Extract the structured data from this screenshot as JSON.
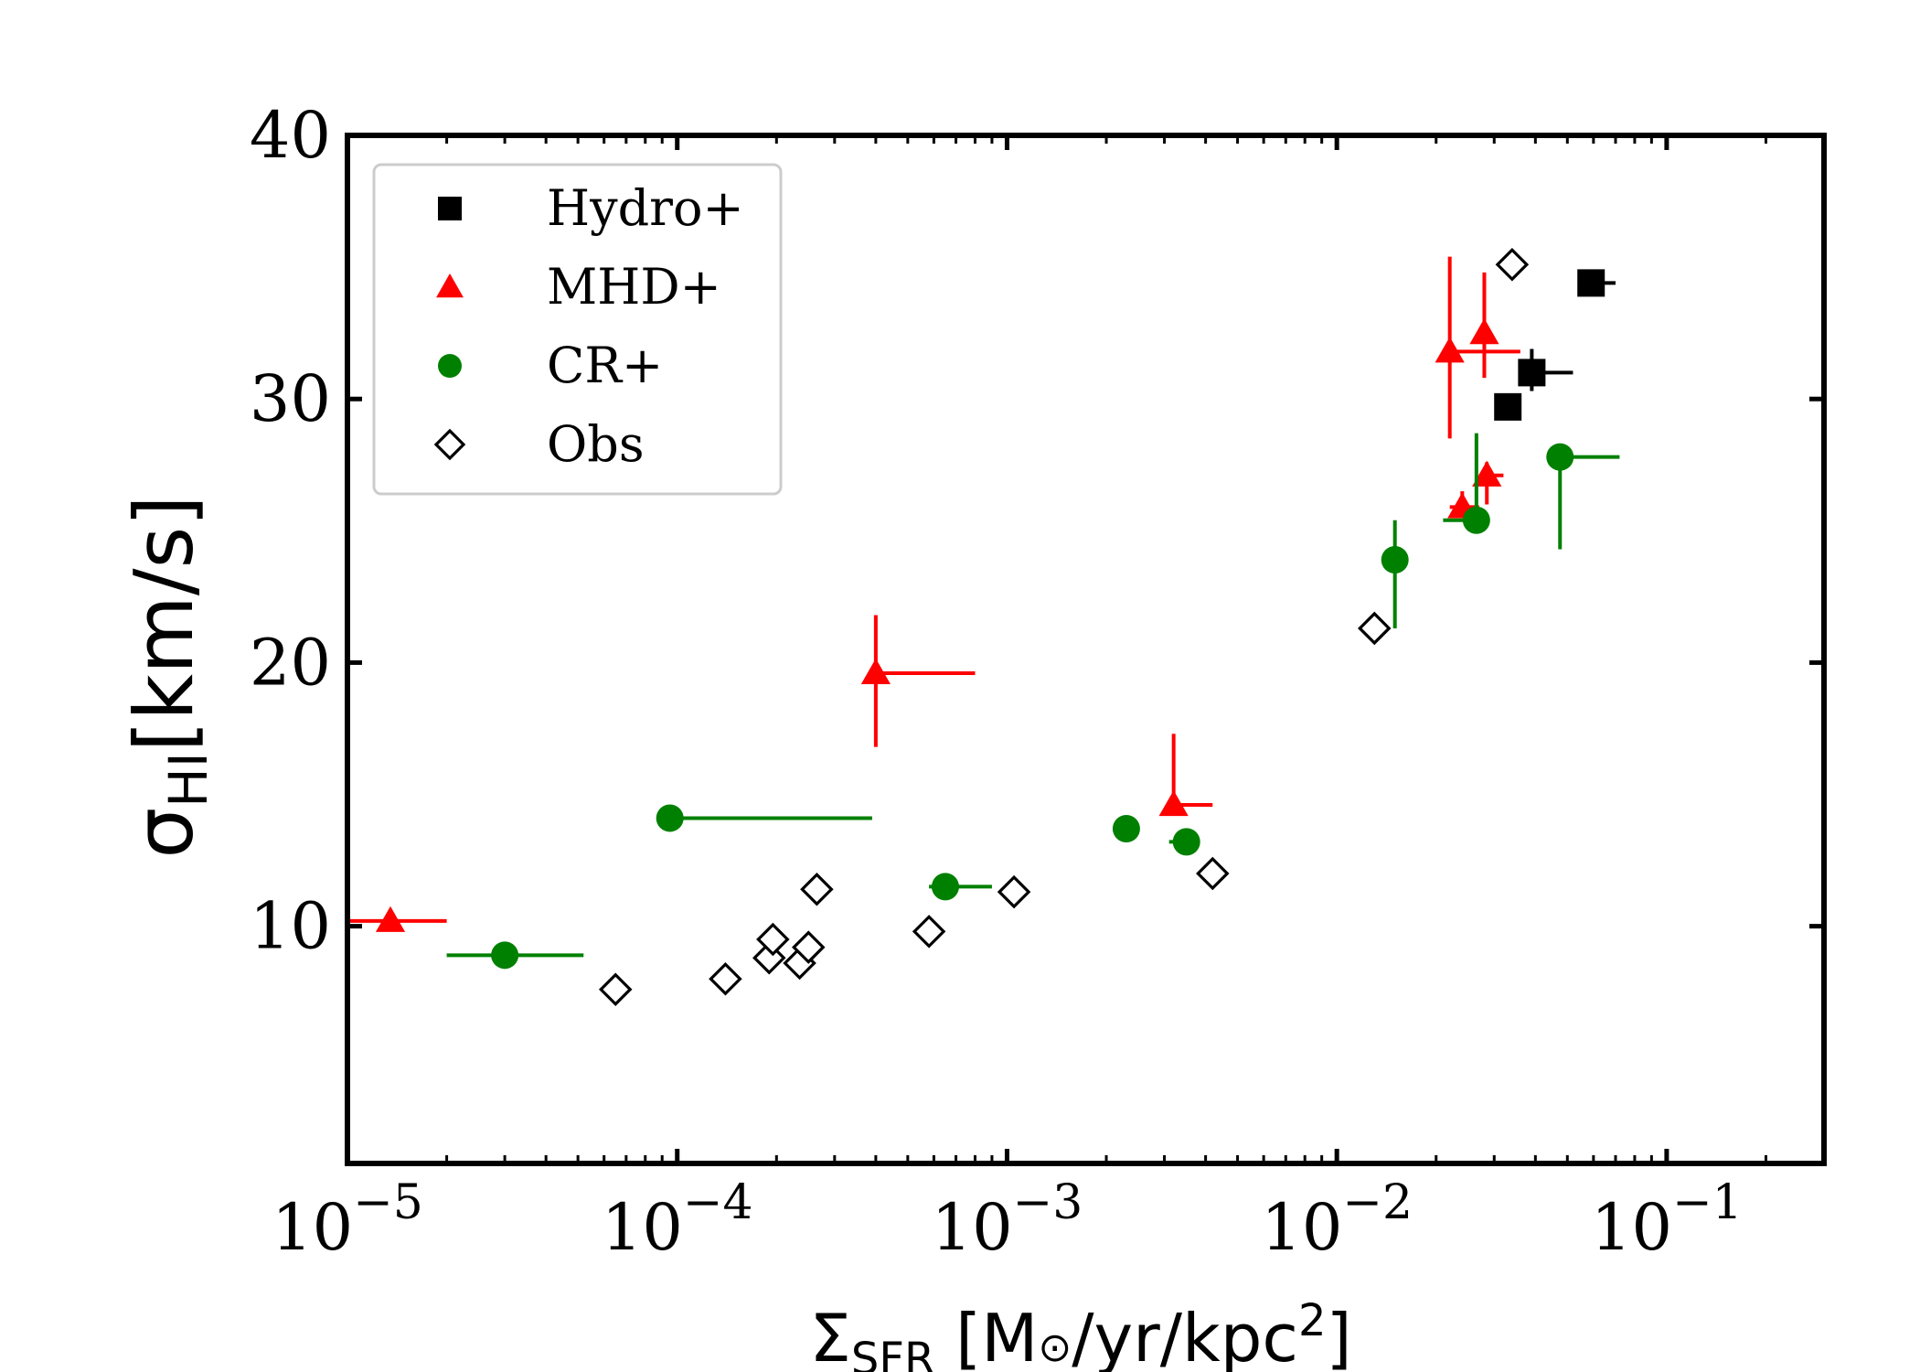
{
  "chart_data": {
    "type": "scatter",
    "title": "",
    "xlabel": {
      "main": "Σ",
      "sub": "SFR",
      "rest": " [M",
      "sun": "⊙",
      "unit": "/yr/kpc",
      "sup": "2",
      "close": "]"
    },
    "ylabel": {
      "main": "σ",
      "sub": "HI",
      "rest": "[km/s]"
    },
    "xscale": "log",
    "xlim": [
      1e-05,
      0.3
    ],
    "ylim": [
      1,
      40
    ],
    "x_ticks": [
      {
        "value": 1e-05,
        "base": "10",
        "exp": "−5"
      },
      {
        "value": 0.0001,
        "base": "10",
        "exp": "−4"
      },
      {
        "value": 0.001,
        "base": "10",
        "exp": "−3"
      },
      {
        "value": 0.01,
        "base": "10",
        "exp": "−2"
      },
      {
        "value": 0.1,
        "base": "10",
        "exp": "−1"
      }
    ],
    "y_ticks": [
      {
        "value": 10,
        "label": "10"
      },
      {
        "value": 20,
        "label": "20"
      },
      {
        "value": 30,
        "label": "30"
      },
      {
        "value": 40,
        "label": "40"
      }
    ],
    "legend_position": "top-left",
    "series": [
      {
        "name": "Hydro+",
        "marker": "square",
        "color": "#000000",
        "points": [
          {
            "x": 0.033,
            "y": 29.7
          },
          {
            "x": 0.039,
            "y": 31.0,
            "xerr": [
              0.039,
              0.052
            ],
            "yerr": [
              30.3,
              31.9
            ]
          },
          {
            "x": 0.059,
            "y": 34.4,
            "xerr": [
              0.056,
              0.07
            ],
            "yerr": [
              33.9,
              34.9
            ]
          }
        ]
      },
      {
        "name": "MHD+",
        "marker": "triangle",
        "color": "#ff0000",
        "points": [
          {
            "x": 1.35e-05,
            "y": 10.2,
            "xerr": [
              1e-05,
              2e-05
            ]
          },
          {
            "x": 0.0004,
            "y": 19.6,
            "xerr": [
              0.0004,
              0.0008
            ],
            "yerr": [
              16.8,
              21.8
            ]
          },
          {
            "x": 0.0032,
            "y": 14.6,
            "xerr": [
              0.0032,
              0.0042
            ],
            "yerr": [
              14.3,
              17.3
            ]
          },
          {
            "x": 0.024,
            "y": 25.9,
            "xerr": [
              0.022,
              0.027
            ],
            "yerr": [
              25.5,
              26.5
            ]
          },
          {
            "x": 0.022,
            "y": 31.8,
            "xerr": [
              0.022,
              0.036
            ],
            "yerr": [
              28.5,
              35.4
            ]
          },
          {
            "x": 0.028,
            "y": 32.5,
            "yerr": [
              30.8,
              34.8
            ]
          },
          {
            "x": 0.0285,
            "y": 27.1,
            "xerr": [
              0.027,
              0.032
            ],
            "yerr": [
              26.0,
              27.6
            ]
          }
        ]
      },
      {
        "name": "CR+",
        "marker": "circle",
        "color": "#008000",
        "points": [
          {
            "x": 3e-05,
            "y": 8.9,
            "xerr": [
              2e-05,
              5.2e-05
            ]
          },
          {
            "x": 9.5e-05,
            "y": 14.1,
            "xerr": [
              9.5e-05,
              0.00039
            ],
            "yerr": [
              13.6,
              14.3
            ]
          },
          {
            "x": 0.00065,
            "y": 11.5,
            "xerr": [
              0.00058,
              0.0009
            ]
          },
          {
            "x": 0.0023,
            "y": 13.7
          },
          {
            "x": 0.0035,
            "y": 13.2,
            "xerr": [
              0.0031,
              0.0035
            ]
          },
          {
            "x": 0.015,
            "y": 23.9,
            "yerr": [
              21.3,
              25.4
            ]
          },
          {
            "x": 0.0265,
            "y": 25.4,
            "xerr": [
              0.021,
              0.0265
            ],
            "yerr": [
              25.4,
              28.7
            ]
          },
          {
            "x": 0.0475,
            "y": 27.8,
            "xerr": [
              0.0475,
              0.072
            ],
            "yerr": [
              24.3,
              27.8
            ]
          }
        ]
      },
      {
        "name": "Obs",
        "marker": "diamond-open",
        "color": "#000000",
        "points": [
          {
            "x": 6.5e-05,
            "y": 7.6
          },
          {
            "x": 0.00014,
            "y": 8.0
          },
          {
            "x": 0.00019,
            "y": 8.8
          },
          {
            "x": 0.000195,
            "y": 9.5
          },
          {
            "x": 0.000235,
            "y": 8.6
          },
          {
            "x": 0.00025,
            "y": 9.2
          },
          {
            "x": 0.000265,
            "y": 11.4
          },
          {
            "x": 0.00058,
            "y": 9.8
          },
          {
            "x": 0.00105,
            "y": 11.3
          },
          {
            "x": 0.0042,
            "y": 12.0
          },
          {
            "x": 0.013,
            "y": 21.3
          },
          {
            "x": 0.034,
            "y": 35.1
          }
        ]
      }
    ]
  }
}
